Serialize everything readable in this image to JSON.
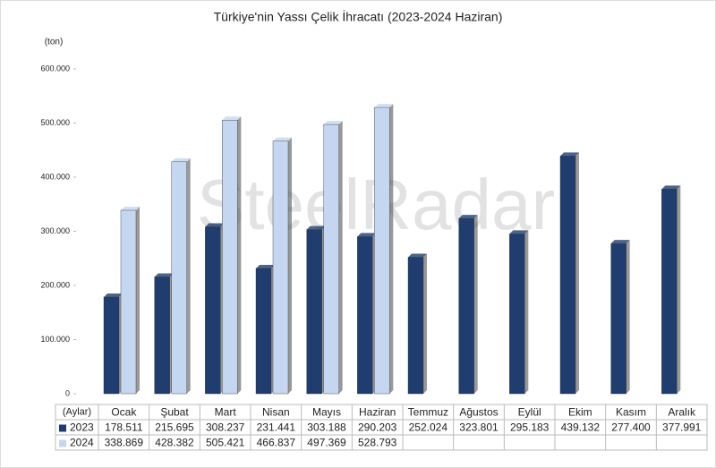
{
  "chart_data": {
    "type": "bar",
    "title": "Türkiye'nin Yassı Çelik İhracatı (2023-2024 Haziran)",
    "y_label": "(ton)",
    "x_label": "(Aylar)",
    "watermark": "SteelRadar",
    "categories": [
      "Ocak",
      "Şubat",
      "Mart",
      "Nisan",
      "Mayıs",
      "Haziran",
      "Temmuz",
      "Ağustos",
      "Eylül",
      "Ekim",
      "Kasım",
      "Aralık"
    ],
    "series": [
      {
        "name": "2023",
        "color": "#1f3d6e",
        "values": [
          178511,
          215695,
          308237,
          231441,
          303188,
          290203,
          252024,
          323801,
          295183,
          439132,
          277400,
          377991
        ],
        "value_labels": [
          "178.511",
          "215.695",
          "308.237",
          "231.441",
          "303.188",
          "290.203",
          "252.024",
          "323.801",
          "295.183",
          "439.132",
          "277.400",
          "377.991"
        ]
      },
      {
        "name": "2024",
        "color": "#c5d7f0",
        "values": [
          338869,
          428382,
          505421,
          466837,
          497369,
          528793,
          null,
          null,
          null,
          null,
          null,
          null
        ],
        "value_labels": [
          "338.869",
          "428.382",
          "505.421",
          "466.837",
          "497.369",
          "528.793",
          null,
          null,
          null,
          null,
          null,
          null
        ]
      }
    ],
    "ylim": [
      0,
      600000
    ],
    "yticks": [
      0,
      {
        "value": 100000,
        "label": "100.000"
      },
      {
        "value": 200000,
        "label": "200.000"
      },
      {
        "value": 300000,
        "label": "300.000"
      },
      {
        "value": 400000,
        "label": "400.000"
      },
      {
        "value": 500000,
        "label": "500.000"
      },
      {
        "value": 600000,
        "label": "600.000"
      }
    ],
    "grid": false
  }
}
